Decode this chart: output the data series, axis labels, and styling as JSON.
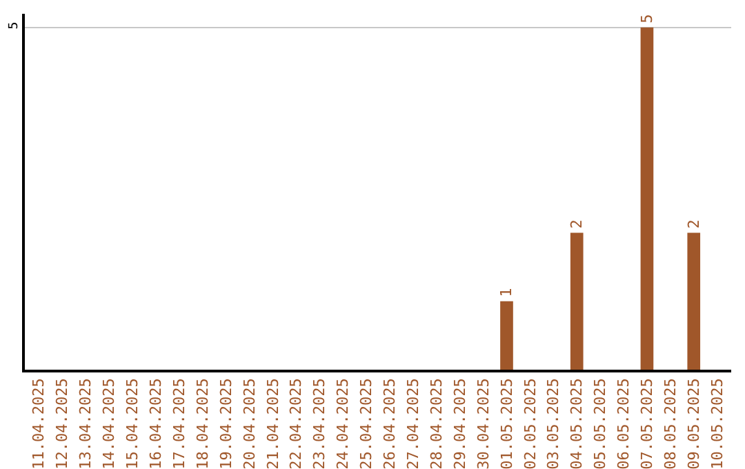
{
  "chart_data": {
    "type": "bar",
    "categories": [
      "11.04.2025",
      "12.04.2025",
      "13.04.2025",
      "14.04.2025",
      "15.04.2025",
      "16.04.2025",
      "17.04.2025",
      "18.04.2025",
      "19.04.2025",
      "20.04.2025",
      "21.04.2025",
      "22.04.2025",
      "23.04.2025",
      "24.04.2025",
      "25.04.2025",
      "26.04.2025",
      "27.04.2025",
      "28.04.2025",
      "29.04.2025",
      "30.04.2025",
      "01.05.2025",
      "02.05.2025",
      "03.05.2025",
      "04.05.2025",
      "05.05.2025",
      "06.05.2025",
      "07.05.2025",
      "08.05.2025",
      "09.05.2025",
      "10.05.2025"
    ],
    "values": [
      null,
      null,
      null,
      null,
      null,
      null,
      null,
      null,
      null,
      null,
      null,
      null,
      null,
      null,
      null,
      null,
      null,
      null,
      null,
      null,
      1,
      null,
      null,
      2,
      null,
      null,
      5,
      null,
      2,
      null
    ],
    "color": "#a0572a",
    "ylim": [
      0,
      5.2
    ],
    "yticks": [
      5
    ],
    "grid": "y",
    "data_labels": true,
    "legend": false
  }
}
